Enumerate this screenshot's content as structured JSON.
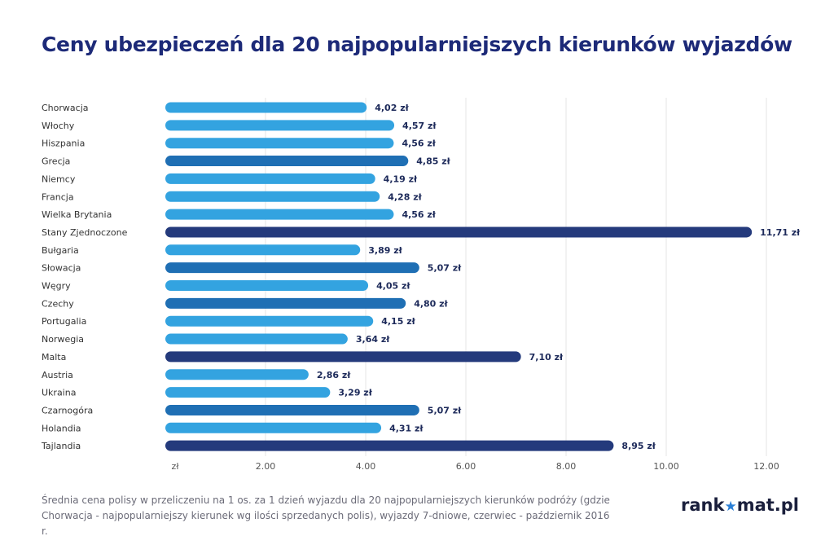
{
  "title": "Ceny ubezpieczeń dla 20 najpopularniejszych kierunków wyjazdów",
  "footnote": "Średnia cena polisy w przeliczeniu na 1 os. za 1 dzień wyjazdu dla 20 najpopularniejszych kierunków podróży (gdzie Chorwacja - najpopularniejszy kierunek wg ilości sprzedanych polis), wyjazdy 7-dniowe, czerwiec - październik 2016 r.",
  "logo": {
    "left": "rank",
    "star": "★",
    "right": "mat.pl"
  },
  "colors": {
    "light": "#33a3e0",
    "mid": "#1f6fb4",
    "dark": "#243a7c",
    "grid": "#e4e4e4",
    "label": "#1d2a5a",
    "axis": "#555555"
  },
  "chart_data": {
    "type": "bar",
    "orientation": "horizontal",
    "unit": "zł",
    "categories": [
      "Chorwacja",
      "Włochy",
      "Hiszpania",
      "Grecja",
      "Niemcy",
      "Francja",
      "Wielka Brytania",
      "Stany Zjednoczone",
      "Bułgaria",
      "Słowacja",
      "Węgry",
      "Czechy",
      "Portugalia",
      "Norwegia",
      "Malta",
      "Austria",
      "Ukraina",
      "Czarnogóra",
      "Holandia",
      "Tajlandia"
    ],
    "values": [
      4.02,
      4.57,
      4.56,
      4.85,
      4.19,
      4.28,
      4.56,
      11.71,
      3.89,
      5.07,
      4.05,
      4.8,
      4.15,
      3.64,
      7.1,
      2.86,
      3.29,
      5.07,
      4.31,
      8.95
    ],
    "value_labels": [
      "4,02 zł",
      "4,57 zł",
      "4,56 zł",
      "4,85 zł",
      "4,19 zł",
      "4,28 zł",
      "4,56 zł",
      "11,71 zł",
      "3,89 zł",
      "5,07 zł",
      "4,05 zł",
      "4,80 zł",
      "4,15 zł",
      "3,64 zł",
      "7,10 zł",
      "2,86 zł",
      "3,29 zł",
      "5,07 zł",
      "4,31 zł",
      "8,95 zł"
    ],
    "shades": [
      "light",
      "light",
      "light",
      "mid",
      "light",
      "light",
      "light",
      "dark",
      "light",
      "mid",
      "light",
      "mid",
      "light",
      "light",
      "dark",
      "light",
      "light",
      "mid",
      "light",
      "dark"
    ],
    "xlim": [
      0,
      12
    ],
    "xticks": [
      0,
      2,
      4,
      6,
      8,
      10,
      12
    ],
    "xtick_labels": [
      "zł",
      "2.00",
      "4.00",
      "6.00",
      "8.00",
      "10.00",
      "12.00"
    ],
    "grid": true
  }
}
